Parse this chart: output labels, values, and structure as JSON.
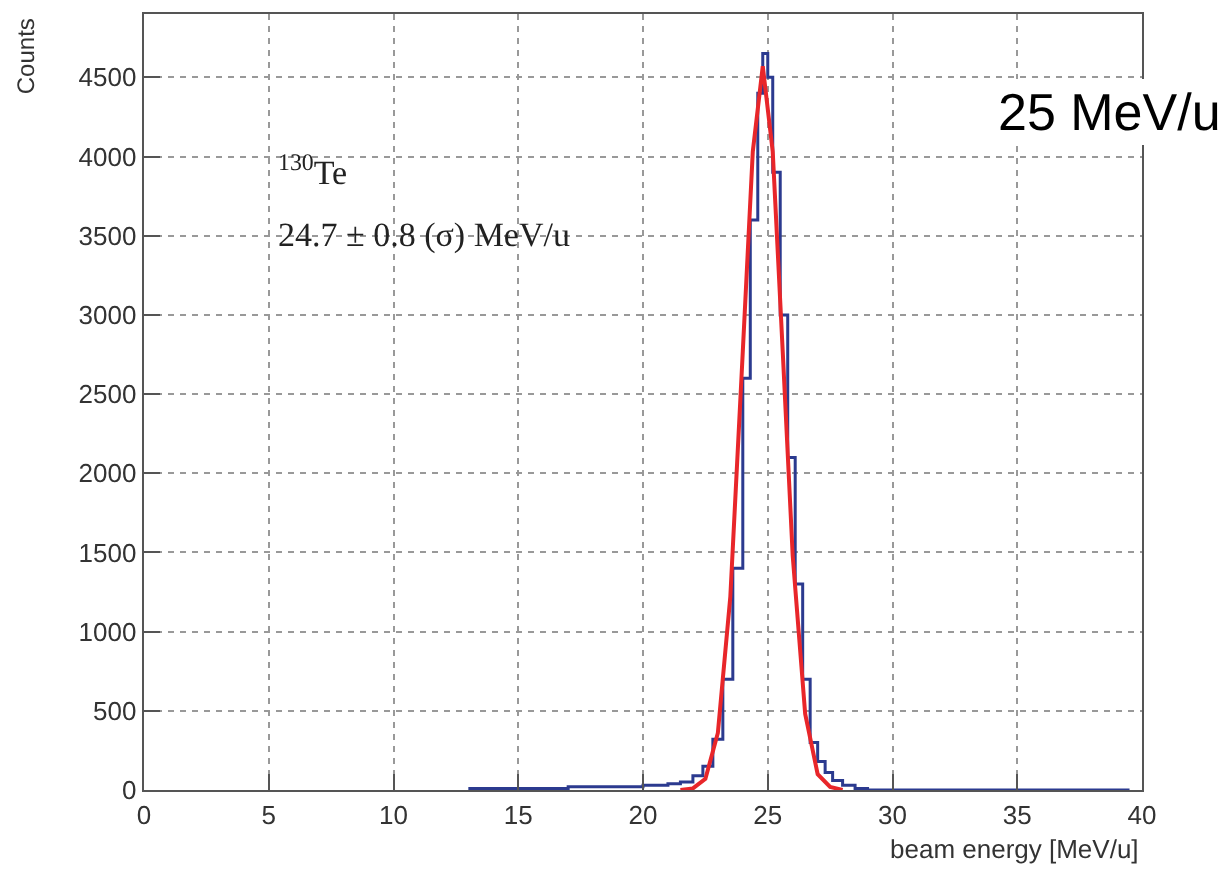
{
  "chart_data": {
    "type": "line",
    "xlabel": "beam energy [MeV/u]",
    "ylabel": "Counts",
    "annotations": [
      "$^{130}$Te",
      "24.7 ± 0.8 (σ) MeV/u",
      "25 MeV/u"
    ],
    "series": [
      {
        "type": "step",
        "color": "#2b3a8f",
        "x": [
          13,
          15,
          17,
          19,
          20,
          21,
          21.5,
          22,
          22.4,
          22.8,
          23.2,
          23.6,
          24,
          24.3,
          24.6,
          24.8,
          25,
          25.2,
          25.5,
          25.8,
          26.1,
          26.4,
          26.7,
          27,
          27.3,
          27.6,
          28,
          28.5,
          29,
          39.5
        ],
        "values": [
          10,
          10,
          20,
          20,
          30,
          40,
          50,
          90,
          150,
          320,
          700,
          1400,
          2600,
          3600,
          4400,
          4650,
          4500,
          3900,
          3000,
          2100,
          1300,
          700,
          300,
          180,
          110,
          60,
          30,
          10,
          0,
          0
        ]
      },
      {
        "type": "line",
        "color": "#e8262a",
        "x": [
          21.5,
          22,
          22.5,
          23,
          23.5,
          24,
          24.4,
          24.8,
          25.2,
          25.6,
          26,
          26.5,
          27,
          27.5,
          28
        ],
        "values": [
          0,
          10,
          70,
          360,
          1220,
          2770,
          4030,
          4570,
          4030,
          2770,
          1480,
          480,
          100,
          20,
          0
        ]
      }
    ],
    "xlim": [
      0,
      40
    ],
    "xticks": [
      0,
      5,
      10,
      15,
      20,
      25,
      30,
      35,
      40
    ],
    "ylim": [
      0,
      4900
    ],
    "yticks": [
      0,
      500,
      1000,
      1500,
      2000,
      2500,
      3000,
      3500,
      4000,
      4500
    ],
    "grid": true
  }
}
